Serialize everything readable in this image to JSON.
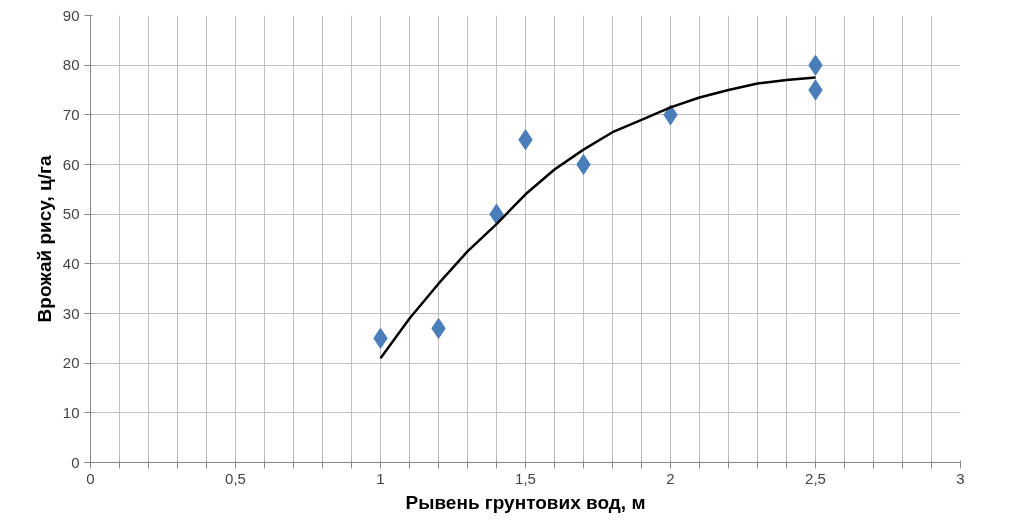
{
  "chart_data": {
    "type": "scatter",
    "xlabel": "Рывень грунтових вод, м",
    "ylabel": "Врожай рису, ц/га",
    "x": [
      1,
      1.2,
      1.4,
      1.5,
      1.7,
      2,
      2.5,
      2.5
    ],
    "series": [
      {
        "color": "#4a7ebb",
        "values": [
          25,
          27,
          50,
          65,
          60,
          70,
          80,
          75
        ]
      },
      {
        "type": "line",
        "marker": "none",
        "color": "#000000",
        "x": [
          1,
          1.1,
          1.2,
          1.3,
          1.4,
          1.5,
          1.6,
          1.7,
          1.8,
          1.9,
          2,
          2.1,
          2.2,
          2.3,
          2.4,
          2.5
        ],
        "values": [
          21,
          29,
          36,
          42.5,
          48,
          54,
          59,
          63,
          66.5,
          69,
          71.5,
          73.5,
          75,
          76.3,
          77,
          77.5
        ]
      }
    ],
    "xlim": [
      0,
      3
    ],
    "ylim": [
      0,
      90
    ],
    "xticks": [
      0,
      {
        "value": 0.1,
        "label": null
      },
      {
        "value": 0.2,
        "label": null
      },
      {
        "value": 0.3,
        "label": null
      },
      {
        "value": 0.4,
        "label": null
      },
      {
        "value": 0.5,
        "label": "0,5"
      },
      {
        "value": 0.6,
        "label": null
      },
      {
        "value": 0.7,
        "label": null
      },
      {
        "value": 0.8,
        "label": null
      },
      {
        "value": 0.9,
        "label": null
      },
      1,
      {
        "value": 1.1,
        "label": null
      },
      {
        "value": 1.2,
        "label": null
      },
      {
        "value": 1.3,
        "label": null
      },
      {
        "value": 1.4,
        "label": null
      },
      {
        "value": 1.5,
        "label": "1,5"
      },
      {
        "value": 1.6,
        "label": null
      },
      {
        "value": 1.7,
        "label": null
      },
      {
        "value": 1.8,
        "label": null
      },
      {
        "value": 1.9,
        "label": null
      },
      2,
      {
        "value": 2.1,
        "label": null
      },
      {
        "value": 2.2,
        "label": null
      },
      {
        "value": 2.3,
        "label": null
      },
      {
        "value": 2.4,
        "label": null
      },
      {
        "value": 2.5,
        "label": "2,5"
      },
      {
        "value": 2.6,
        "label": null
      },
      {
        "value": 2.7,
        "label": null
      },
      {
        "value": 2.8,
        "label": null
      },
      {
        "value": 2.9,
        "label": null
      },
      3
    ],
    "yticks": [
      0,
      10,
      20,
      30,
      40,
      50,
      60,
      70,
      80,
      90
    ],
    "grid": true,
    "marker": "diamond",
    "line_style": "solid"
  }
}
